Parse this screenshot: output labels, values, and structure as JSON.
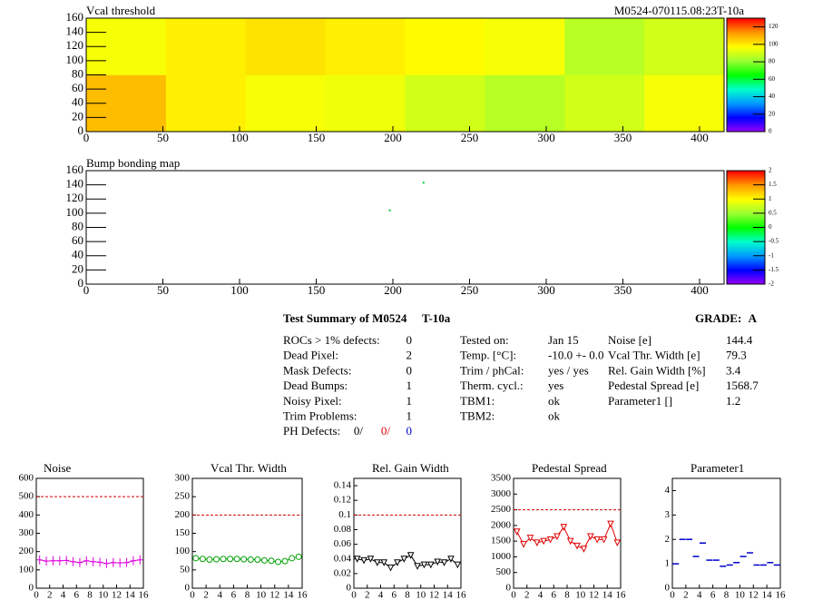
{
  "chart_data": [
    {
      "type": "heatmap",
      "title": "Vcal threshold",
      "subtitle": "M0524-070115.08:23T-10a",
      "xlim": [
        0,
        416
      ],
      "ylim": [
        0,
        160
      ],
      "xticks": [
        0,
        50,
        100,
        150,
        200,
        250,
        300,
        350,
        400
      ],
      "yticks": [
        0,
        20,
        40,
        60,
        80,
        100,
        120,
        140,
        160
      ],
      "zlim": [
        0,
        130
      ],
      "zticks": [
        0,
        20,
        40,
        60,
        80,
        100,
        120
      ],
      "z": [
        [
          108,
          100,
          96,
          95,
          90,
          86,
          90,
          96
        ],
        [
          96,
          100,
          102,
          100,
          98,
          96,
          86,
          90
        ]
      ]
    },
    {
      "type": "scatter",
      "title": "Bump bonding map",
      "color": "#00cc33",
      "xlim": [
        0,
        416
      ],
      "ylim": [
        0,
        160
      ],
      "xticks": [
        0,
        50,
        100,
        150,
        200,
        250,
        300,
        350,
        400
      ],
      "yticks": [
        0,
        20,
        40,
        60,
        80,
        100,
        120,
        140,
        160
      ],
      "zlim": [
        -2,
        2
      ],
      "zticks": [
        -2,
        -1.5,
        -1,
        -0.5,
        0,
        0.5,
        1,
        1.5,
        2
      ],
      "x": [
        220,
        198
      ],
      "values": [
        143,
        104
      ]
    },
    {
      "type": "line",
      "title": "Noise",
      "color": "#e000e0",
      "marker": "plus",
      "threshold": 500,
      "xlim": [
        0,
        16
      ],
      "xticks": [
        0,
        2,
        4,
        6,
        8,
        10,
        12,
        14,
        16
      ],
      "ylim": [
        0,
        600
      ],
      "yticks": [
        0,
        100,
        200,
        300,
        400,
        500,
        600
      ],
      "x": [
        0.5,
        1.5,
        2.5,
        3.5,
        4.5,
        5.5,
        6.5,
        7.5,
        8.5,
        9.5,
        10.5,
        11.5,
        12.5,
        13.5,
        14.5,
        15.5
      ],
      "values": [
        155,
        148,
        150,
        150,
        152,
        145,
        140,
        150,
        145,
        142,
        135,
        140,
        138,
        140,
        150,
        155
      ]
    },
    {
      "type": "line",
      "title": "Vcal Thr. Width",
      "color": "#00a000",
      "marker": "circle",
      "threshold": 200,
      "xlim": [
        0,
        16
      ],
      "xticks": [
        0,
        2,
        4,
        6,
        8,
        10,
        12,
        14,
        16
      ],
      "ylim": [
        0,
        300
      ],
      "yticks": [
        0,
        50,
        100,
        150,
        200,
        250,
        300
      ],
      "x": [
        0.5,
        1.5,
        2.5,
        3.5,
        4.5,
        5.5,
        6.5,
        7.5,
        8.5,
        9.5,
        10.5,
        11.5,
        12.5,
        13.5,
        14.5,
        15.5
      ],
      "values": [
        82,
        80,
        78,
        79,
        80,
        80,
        80,
        79,
        78,
        78,
        76,
        75,
        72,
        74,
        82,
        86
      ]
    },
    {
      "type": "line",
      "title": "Rel. Gain Width",
      "color": "#000000",
      "marker": "triangle",
      "threshold": 0.1,
      "xlim": [
        0,
        16
      ],
      "xticks": [
        0,
        2,
        4,
        6,
        8,
        10,
        12,
        14,
        16
      ],
      "ylim": [
        0,
        0.15
      ],
      "yticks": [
        0,
        0.02,
        0.04,
        0.06,
        0.08,
        0.1,
        0.12,
        0.14
      ],
      "x": [
        0.5,
        1.5,
        2.5,
        3.5,
        4.5,
        5.5,
        6.5,
        7.5,
        8.5,
        9.5,
        10.5,
        11.5,
        12.5,
        13.5,
        14.5,
        15.5
      ],
      "values": [
        0.04,
        0.038,
        0.04,
        0.035,
        0.035,
        0.028,
        0.035,
        0.04,
        0.045,
        0.03,
        0.032,
        0.032,
        0.036,
        0.035,
        0.04,
        0.032
      ]
    },
    {
      "type": "line",
      "title": "Pedestal Spread",
      "color": "#e00000",
      "marker": "triangle",
      "threshold": 2500,
      "xlim": [
        0,
        16
      ],
      "xticks": [
        0,
        2,
        4,
        6,
        8,
        10,
        12,
        14,
        16
      ],
      "ylim": [
        0,
        3500
      ],
      "yticks": [
        0,
        500,
        1000,
        1500,
        2000,
        2500,
        3000,
        3500
      ],
      "x": [
        0.5,
        1.5,
        2.5,
        3.5,
        4.5,
        5.5,
        6.5,
        7.5,
        8.5,
        9.5,
        10.5,
        11.5,
        12.5,
        13.5,
        14.5,
        15.5
      ],
      "values": [
        1800,
        1400,
        1600,
        1450,
        1500,
        1550,
        1650,
        1950,
        1500,
        1350,
        1250,
        1650,
        1550,
        1550,
        2050,
        1450
      ]
    },
    {
      "type": "dash",
      "title": "Parameter1",
      "color": "#0000cc",
      "marker": "dash",
      "xlim": [
        0,
        16
      ],
      "xticks": [
        0,
        2,
        4,
        6,
        8,
        10,
        12,
        14,
        16
      ],
      "ylim": [
        0,
        4.5
      ],
      "yticks": [
        0,
        1,
        2,
        3,
        4
      ],
      "x": [
        0.5,
        1.5,
        2.5,
        3.5,
        4.5,
        5.5,
        6.5,
        7.5,
        8.5,
        9.5,
        10.5,
        11.5,
        12.5,
        13.5,
        14.5,
        15.5
      ],
      "values": [
        1,
        2,
        2,
        1.3,
        1.85,
        1.15,
        1.15,
        0.9,
        0.95,
        1.05,
        1.3,
        1.45,
        0.95,
        0.95,
        1.05,
        0.95
      ]
    }
  ],
  "summary": {
    "title": "Test Summary of M0524",
    "temp": "T-10a",
    "grade_label": "GRADE:",
    "grade": "A",
    "defects": [
      {
        "label": "ROCs > 1% defects:",
        "value": "0"
      },
      {
        "label": "Dead Pixel:",
        "value": "2"
      },
      {
        "label": "Mask Defects:",
        "value": "0"
      },
      {
        "label": "Dead Bumps:",
        "value": "1"
      },
      {
        "label": "Noisy Pixel:",
        "value": "1"
      },
      {
        "label": "Trim Problems:",
        "value": "1"
      }
    ],
    "ph_defects": {
      "label": "PH Defects:",
      "values": [
        "0/",
        "0/",
        "0"
      ]
    },
    "conditions": [
      {
        "label": "Tested on:",
        "value": "Jan 15"
      },
      {
        "label": "Temp. [°C]:",
        "value": "-10.0 +- 0.0"
      },
      {
        "label": "Trim / phCal:",
        "value": "yes / yes"
      },
      {
        "label": "Therm. cycl.:",
        "value": "yes"
      },
      {
        "label": "TBM1:",
        "value": "ok"
      },
      {
        "label": "TBM2:",
        "value": "ok"
      }
    ],
    "results": [
      {
        "label": "Noise [e]",
        "value": "144.4"
      },
      {
        "label": "Vcal Thr. Width [e]",
        "value": "79.3"
      },
      {
        "label": "Rel. Gain Width [%]",
        "value": "3.4"
      },
      {
        "label": "Pedestal Spread [e]",
        "value": "1568.7"
      },
      {
        "label": "Parameter1 []",
        "value": "1.2"
      }
    ]
  }
}
